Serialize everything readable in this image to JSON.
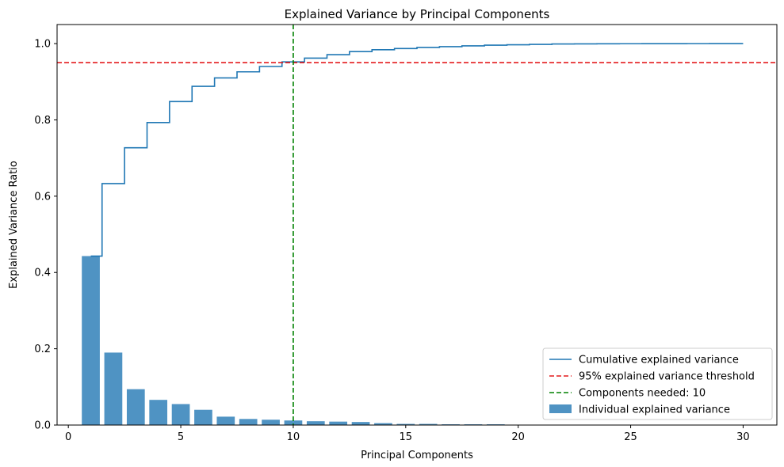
{
  "chart_data": {
    "type": "bar",
    "title": "Explained Variance by Principal Components",
    "xlabel": "Principal Components",
    "ylabel": "Explained Variance Ratio",
    "xlim": [
      -0.5,
      31.5
    ],
    "ylim": [
      0,
      1.05
    ],
    "xticks": [
      0,
      5,
      10,
      15,
      20,
      25,
      30
    ],
    "yticks": [
      0.0,
      0.2,
      0.4,
      0.6,
      0.8,
      1.0
    ],
    "xtick_labels": [
      "0",
      "5",
      "10",
      "15",
      "20",
      "25",
      "30"
    ],
    "ytick_labels": [
      "0.0",
      "0.2",
      "0.4",
      "0.6",
      "0.8",
      "1.0"
    ],
    "grid": false,
    "legend_position": "lower-right",
    "components": [
      1,
      2,
      3,
      4,
      5,
      6,
      7,
      8,
      9,
      10,
      11,
      12,
      13,
      14,
      15,
      16,
      17,
      18,
      19,
      20,
      21,
      22,
      23,
      24,
      25,
      26,
      27,
      28,
      29,
      30
    ],
    "series": [
      {
        "name": "Individual explained variance",
        "kind": "bar",
        "color": "#4f93c3",
        "values": [
          0.443,
          0.19,
          0.094,
          0.066,
          0.055,
          0.04,
          0.022,
          0.016,
          0.014,
          0.012,
          0.01,
          0.009,
          0.008,
          0.005,
          0.003,
          0.003,
          0.002,
          0.002,
          0.002,
          0.001,
          0.001,
          0.001,
          0.001,
          0.001,
          0.001,
          0.0008,
          0.0006,
          0.0005,
          0.0004,
          0.0003
        ]
      },
      {
        "name": "Cumulative explained variance",
        "kind": "step",
        "color": "#1f77b4",
        "values": [
          0.443,
          0.633,
          0.727,
          0.793,
          0.848,
          0.888,
          0.91,
          0.926,
          0.94,
          0.952,
          0.962,
          0.971,
          0.979,
          0.984,
          0.987,
          0.99,
          0.992,
          0.994,
          0.996,
          0.997,
          0.998,
          0.999,
          0.9993,
          0.9995,
          0.9997,
          0.9998,
          0.9999,
          0.99995,
          0.99998,
          1.0
        ]
      },
      {
        "name": "95% explained variance threshold",
        "kind": "hline",
        "color": "#e41a1c",
        "value": 0.95
      },
      {
        "name": "Components needed: 10",
        "kind": "vline",
        "color": "#008000",
        "value": 10
      }
    ]
  }
}
